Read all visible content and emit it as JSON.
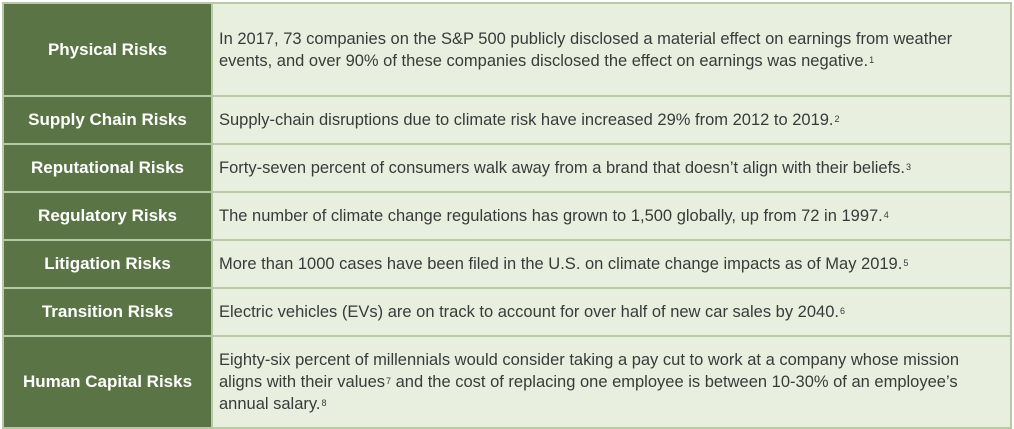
{
  "rows": [
    {
      "category": "Physical Risks",
      "text": "In 2017, 73 companies on the S&P 500 publicly disclosed a material effect on earnings from weather events, and over 90% of these companies disclosed the effect on earnings was negative.",
      "note": "1"
    },
    {
      "category": "Supply Chain Risks",
      "text": "Supply-chain disruptions due to climate risk have increased 29% from 2012 to 2019.",
      "note": "2"
    },
    {
      "category": "Reputational Risks",
      "text": "Forty-seven percent of consumers walk away from a brand that doesn’t align with their beliefs.",
      "note": "3"
    },
    {
      "category": "Regulatory Risks",
      "text": "The number of climate change regulations has grown to 1,500 globally, up from 72 in 1997.",
      "note": "4"
    },
    {
      "category": "Litigation Risks",
      "text": "More than 1000 cases have been filed in the U.S. on climate change impacts as of May 2019.",
      "note": "5"
    },
    {
      "category": "Transition Risks",
      "text": "Electric vehicles (EVs) are on track to account for over half of new car sales by 2040.",
      "note": "6"
    },
    {
      "category": "Human Capital Risks",
      "text": "Eighty-six percent of millennials would consider taking a pay cut to work at a company whose mission aligns with their values",
      "note": "7",
      "text2": " and the cost of replacing one employee is between 10-30% of an employee’s annual salary.",
      "note2": "8"
    }
  ]
}
